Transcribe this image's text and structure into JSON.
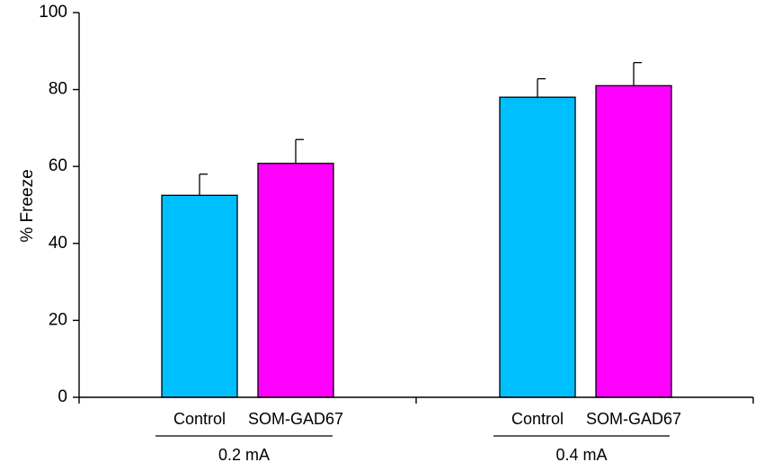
{
  "chart_data": {
    "type": "bar",
    "title": "",
    "ylabel": "% Freeze",
    "xlabel": "",
    "ylim": [
      0,
      100
    ],
    "yticks": [
      0,
      20,
      40,
      60,
      80,
      100
    ],
    "grid": false,
    "groups": [
      {
        "label": "0.2 mA",
        "bars": [
          {
            "category": "Control",
            "value": 52.5,
            "error": 5.5,
            "color": "#00BFFF"
          },
          {
            "category": "SOM-GAD67",
            "value": 60.8,
            "error": 6.2,
            "color": "#FF00FF"
          }
        ]
      },
      {
        "label": "0.4 mA",
        "bars": [
          {
            "category": "Control",
            "value": 78.0,
            "error": 4.8,
            "color": "#00BFFF"
          },
          {
            "category": "SOM-GAD67",
            "value": 81.0,
            "error": 6.0,
            "color": "#FF00FF"
          }
        ]
      }
    ]
  }
}
